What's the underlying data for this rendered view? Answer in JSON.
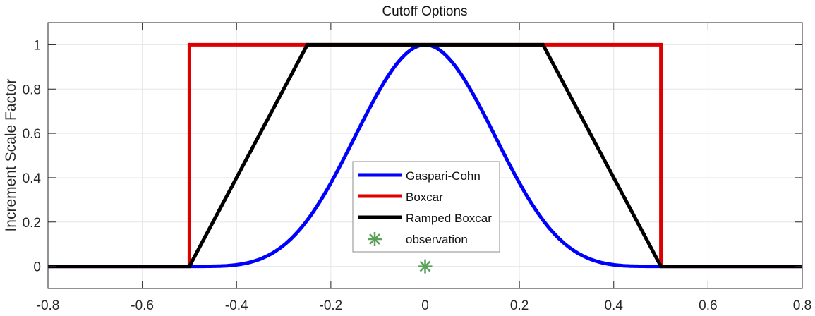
{
  "chart_data": {
    "type": "line",
    "title": "Cutoff Options",
    "xlabel": "",
    "ylabel": "Increment Scale Factor",
    "xlim": [
      -0.8,
      0.8
    ],
    "ylim": [
      -0.1,
      1.1
    ],
    "xticks": [
      -0.8,
      -0.6,
      -0.4,
      -0.2,
      0,
      0.2,
      0.4,
      0.6,
      0.8
    ],
    "xtick_labels": [
      "-0.8",
      "-0.6",
      "-0.4",
      "-0.2",
      "0",
      "0.2",
      "0.4",
      "0.6",
      "0.8"
    ],
    "yticks": [
      0,
      0.2,
      0.4,
      0.6,
      0.8,
      1
    ],
    "ytick_labels": [
      "0",
      "0.2",
      "0.4",
      "0.6",
      "0.8",
      "1"
    ],
    "grid": true,
    "legend_position": "center",
    "series": [
      {
        "name": "Gaspari-Cohn",
        "color": "#0000ff",
        "kind": "gaspari-cohn",
        "half_width": 0.5,
        "x": [
          -0.8,
          -0.5,
          -0.4,
          -0.3,
          -0.25,
          -0.2,
          -0.1,
          0,
          0.1,
          0.2,
          0.25,
          0.3,
          0.4,
          0.5,
          0.8
        ],
        "values": [
          0,
          0,
          0.016,
          0.146,
          0.208,
          0.404,
          0.806,
          1,
          0.806,
          0.404,
          0.208,
          0.146,
          0.016,
          0,
          0
        ]
      },
      {
        "name": "Boxcar",
        "color": "#dd0000",
        "x": [
          -0.8,
          -0.5,
          -0.5,
          0.5,
          0.5,
          0.8
        ],
        "values": [
          0,
          0,
          1,
          1,
          0,
          0
        ]
      },
      {
        "name": "Ramped Boxcar",
        "color": "#000000",
        "x": [
          -0.8,
          -0.5,
          -0.25,
          0.25,
          0.5,
          0.8
        ],
        "values": [
          0,
          0,
          1,
          1,
          0,
          0
        ]
      },
      {
        "name": "observation",
        "color": "#5aa05a",
        "marker": "asterisk",
        "x": [
          0
        ],
        "values": [
          0
        ]
      }
    ]
  },
  "legend": {
    "items": [
      "Gaspari-Cohn",
      "Boxcar",
      "Ramped Boxcar",
      "observation"
    ]
  }
}
